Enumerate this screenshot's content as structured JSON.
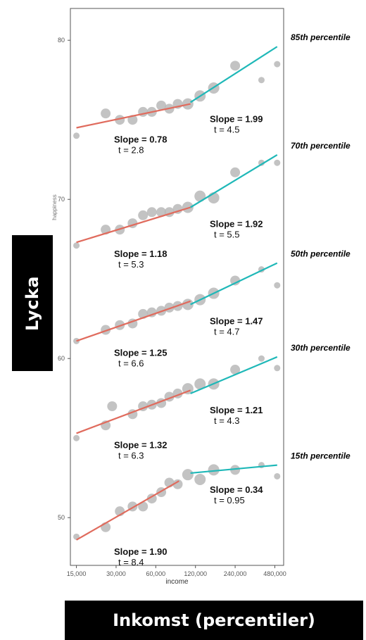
{
  "chart_data": {
    "type": "scatter",
    "xlabel": "income",
    "ylabel": "happiness",
    "x_scale": "log",
    "xlim": [
      13500,
      560000
    ],
    "ylim": [
      47,
      82
    ],
    "x_ticks": [
      15000,
      30000,
      60000,
      120000,
      240000,
      480000
    ],
    "x_tick_labels": [
      "15,000",
      "30,000",
      "60,000",
      "120,000",
      "240,000",
      "480,000"
    ],
    "y_ticks": [
      50,
      60,
      70,
      80
    ],
    "y_tick_labels": [
      "50",
      "60",
      "70",
      "80"
    ],
    "grid": false,
    "colors": {
      "low_fit": "#e06b5d",
      "high_fit": "#1fb8b8",
      "points": "#b8b8b8"
    },
    "series": [
      {
        "name": "85th percentile",
        "points": [
          [
            15000,
            74.0
          ],
          [
            25000,
            75.4
          ],
          [
            32000,
            75.0
          ],
          [
            40000,
            75.0
          ],
          [
            48000,
            75.5
          ],
          [
            56000,
            75.5
          ],
          [
            66000,
            75.9
          ],
          [
            76000,
            75.7
          ],
          [
            88000,
            76.0
          ],
          [
            105000,
            76.0
          ],
          [
            130000,
            76.5
          ],
          [
            165000,
            77.0
          ],
          [
            240000,
            78.4
          ],
          [
            380000,
            77.5
          ],
          [
            500000,
            78.5
          ]
        ],
        "fits": [
          {
            "segment": "low",
            "x": [
              15000,
              110000
            ],
            "y": [
              74.5,
              76.0
            ],
            "slope": "Slope = 0.78",
            "t": "t = 2.8"
          },
          {
            "segment": "high",
            "x": [
              110000,
              500000
            ],
            "y": [
              76.1,
              79.6
            ],
            "slope": "Slope = 1.99",
            "t": "t = 4.5"
          }
        ]
      },
      {
        "name": "70th percentile",
        "points": [
          [
            15000,
            67.1
          ],
          [
            25000,
            68.1
          ],
          [
            32000,
            68.1
          ],
          [
            40000,
            68.5
          ],
          [
            48000,
            69.0
          ],
          [
            56000,
            69.2
          ],
          [
            66000,
            69.2
          ],
          [
            76000,
            69.2
          ],
          [
            88000,
            69.4
          ],
          [
            105000,
            69.5
          ],
          [
            130000,
            70.2
          ],
          [
            165000,
            70.1
          ],
          [
            240000,
            71.7
          ],
          [
            380000,
            72.3
          ],
          [
            500000,
            72.3
          ]
        ],
        "fits": [
          {
            "segment": "low",
            "x": [
              15000,
              110000
            ],
            "y": [
              67.3,
              69.5
            ],
            "slope": "Slope = 1.18",
            "t": "t = 5.3"
          },
          {
            "segment": "high",
            "x": [
              110000,
              500000
            ],
            "y": [
              69.5,
              72.8
            ],
            "slope": "Slope = 1.92",
            "t": "t = 5.5"
          }
        ]
      },
      {
        "name": "50th percentile",
        "points": [
          [
            15000,
            61.1
          ],
          [
            25000,
            61.8
          ],
          [
            32000,
            62.1
          ],
          [
            40000,
            62.2
          ],
          [
            48000,
            62.8
          ],
          [
            56000,
            62.9
          ],
          [
            66000,
            63.0
          ],
          [
            76000,
            63.2
          ],
          [
            88000,
            63.3
          ],
          [
            105000,
            63.4
          ],
          [
            130000,
            63.7
          ],
          [
            165000,
            64.1
          ],
          [
            240000,
            64.9
          ],
          [
            380000,
            65.6
          ],
          [
            500000,
            64.6
          ]
        ],
        "fits": [
          {
            "segment": "low",
            "x": [
              15000,
              110000
            ],
            "y": [
              61.1,
              63.6
            ],
            "slope": "Slope = 1.25",
            "t": "t = 6.6"
          },
          {
            "segment": "high",
            "x": [
              110000,
              500000
            ],
            "y": [
              63.4,
              66.0
            ],
            "slope": "Slope = 1.47",
            "t": "t = 4.7"
          }
        ]
      },
      {
        "name": "30th percentile",
        "points": [
          [
            15000,
            55.0
          ],
          [
            25000,
            55.8
          ],
          [
            28000,
            57.0
          ],
          [
            40000,
            56.5
          ],
          [
            48000,
            57.0
          ],
          [
            56000,
            57.1
          ],
          [
            66000,
            57.2
          ],
          [
            76000,
            57.6
          ],
          [
            88000,
            57.8
          ],
          [
            105000,
            58.1
          ],
          [
            130000,
            58.4
          ],
          [
            165000,
            58.4
          ],
          [
            240000,
            59.3
          ],
          [
            380000,
            60.0
          ],
          [
            500000,
            59.4
          ]
        ],
        "fits": [
          {
            "segment": "low",
            "x": [
              15000,
              110000
            ],
            "y": [
              55.3,
              58.0
            ],
            "slope": "Slope = 1.32",
            "t": "t = 6.3"
          },
          {
            "segment": "high",
            "x": [
              110000,
              500000
            ],
            "y": [
              57.8,
              60.1
            ],
            "slope": "Slope = 1.21",
            "t": "t = 4.3"
          }
        ]
      },
      {
        "name": "15th percentile",
        "points": [
          [
            15000,
            48.8
          ],
          [
            25000,
            49.4
          ],
          [
            32000,
            50.4
          ],
          [
            40000,
            50.7
          ],
          [
            48000,
            50.7
          ],
          [
            56000,
            51.2
          ],
          [
            66000,
            51.6
          ],
          [
            76000,
            52.2
          ],
          [
            88000,
            52.1
          ],
          [
            105000,
            52.7
          ],
          [
            130000,
            52.4
          ],
          [
            165000,
            53.0
          ],
          [
            240000,
            53.0
          ],
          [
            380000,
            53.3
          ],
          [
            500000,
            52.6
          ]
        ],
        "fits": [
          {
            "segment": "low",
            "x": [
              15000,
              90000
            ],
            "y": [
              48.6,
              52.3
            ],
            "slope": "Slope = 1.90",
            "t": "t = 8.4"
          },
          {
            "segment": "high",
            "x": [
              110000,
              500000
            ],
            "y": [
              52.8,
              53.3
            ],
            "slope": "Slope = 0.34",
            "t": "t = 0.95"
          }
        ]
      }
    ]
  },
  "overlay": {
    "y_title": "Lycka",
    "x_title": "Inkomst (percentiler)"
  }
}
